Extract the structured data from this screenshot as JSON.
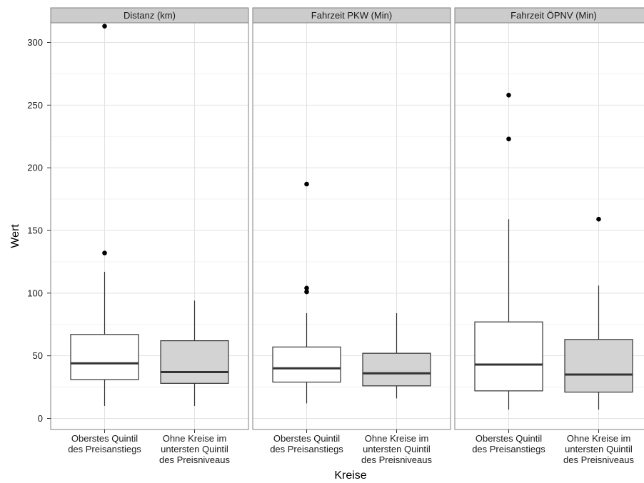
{
  "chart_data": {
    "type": "boxplot",
    "xlabel": "Kreise",
    "ylabel": "Wert",
    "ylim": [
      -8,
      330
    ],
    "yticks": [
      0,
      50,
      100,
      150,
      200,
      250,
      300
    ],
    "ytick_labels": [
      "0",
      "50",
      "100",
      "150",
      "200",
      "250",
      "300"
    ],
    "grid": true,
    "legend": "none",
    "categories": [
      [
        "Oberstes Quintil",
        "des Preisanstiegs"
      ],
      [
        "Ohne Kreise im",
        "untersten Quintil",
        "des Preisniveaus"
      ]
    ],
    "fill_colors": [
      "#ffffff",
      "#d3d3d3"
    ],
    "panels": [
      {
        "title": "Distanz (km)",
        "boxes": [
          {
            "whisker_low": 10,
            "q1": 31,
            "median": 44,
            "q3": 67,
            "whisker_high": 117,
            "outliers": [
              132,
              313
            ]
          },
          {
            "whisker_low": 10,
            "q1": 28,
            "median": 37,
            "q3": 62,
            "whisker_high": 94,
            "outliers": []
          }
        ]
      },
      {
        "title": "Fahrzeit PKW (Min)",
        "boxes": [
          {
            "whisker_low": 12,
            "q1": 29,
            "median": 40,
            "q3": 57,
            "whisker_high": 84,
            "outliers": [
              101,
              104,
              187
            ]
          },
          {
            "whisker_low": 16,
            "q1": 26,
            "median": 36,
            "q3": 52,
            "whisker_high": 84,
            "outliers": []
          }
        ]
      },
      {
        "title": "Fahrzeit ÖPNV (Min)",
        "boxes": [
          {
            "whisker_low": 7,
            "q1": 22,
            "median": 43,
            "q3": 77,
            "whisker_high": 159,
            "outliers": [
              223,
              258
            ]
          },
          {
            "whisker_low": 7,
            "q1": 21,
            "median": 35,
            "q3": 63,
            "whisker_high": 106,
            "outliers": [
              159
            ]
          }
        ]
      }
    ]
  }
}
